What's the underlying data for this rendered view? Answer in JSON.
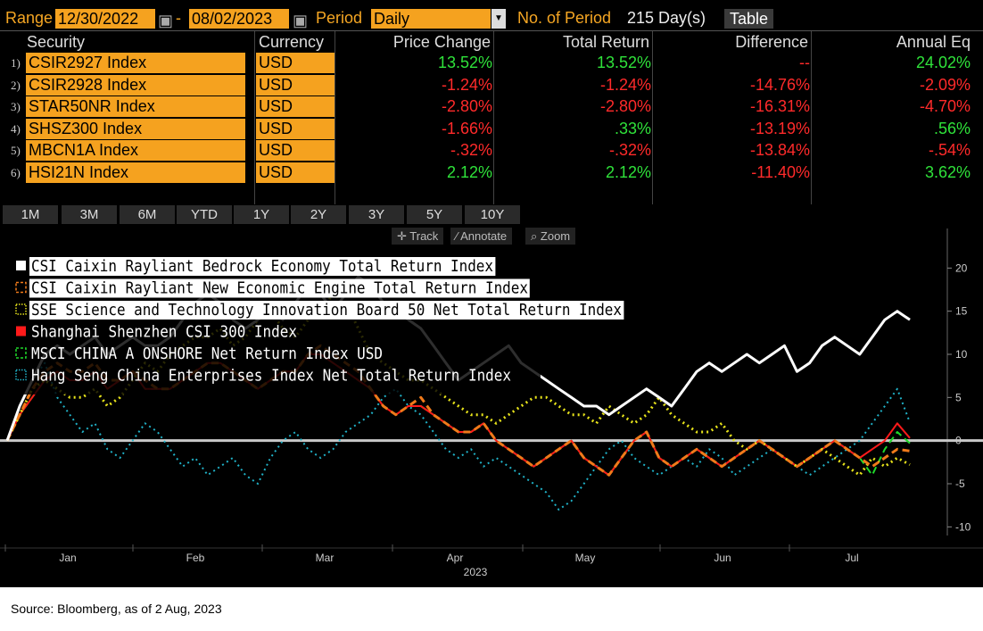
{
  "header": {
    "range_label": "Range",
    "start_date": "12/30/2022",
    "dash": "-",
    "end_date": "08/02/2023",
    "period_label": "Period",
    "period_value": "Daily",
    "num_period_label": "No. of Period",
    "num_period_value": "215 Day(s)",
    "table_button": "Table"
  },
  "table": {
    "headers": [
      "Security",
      "Currency",
      "Price Change",
      "Total Return",
      "Difference",
      "Annual Eq"
    ],
    "rows": [
      {
        "n": "1)",
        "security": "CSIR2927 Index",
        "currency": "USD",
        "price_change": "13.52%",
        "total_return": "13.52%",
        "difference": "--",
        "annual_eq": "24.02%"
      },
      {
        "n": "2)",
        "security": "CSIR2928 Index",
        "currency": "USD",
        "price_change": "-1.24%",
        "total_return": "-1.24%",
        "difference": "-14.76%",
        "annual_eq": "-2.09%"
      },
      {
        "n": "3)",
        "security": "STAR50NR Index",
        "currency": "USD",
        "price_change": "-2.80%",
        "total_return": "-2.80%",
        "difference": "-16.31%",
        "annual_eq": "-4.70%"
      },
      {
        "n": "4)",
        "security": "SHSZ300 Index",
        "currency": "USD",
        "price_change": "-1.66%",
        "total_return": ".33%",
        "difference": "-13.19%",
        "annual_eq": ".56%"
      },
      {
        "n": "5)",
        "security": "MBCN1A Index",
        "currency": "USD",
        "price_change": "-.32%",
        "total_return": "-.32%",
        "difference": "-13.84%",
        "annual_eq": "-.54%"
      },
      {
        "n": "6)",
        "security": "HSI21N Index",
        "currency": "USD",
        "price_change": "2.12%",
        "total_return": "2.12%",
        "difference": "-11.40%",
        "annual_eq": "3.62%"
      }
    ]
  },
  "periods": [
    "1M",
    "3M",
    "6M",
    "YTD",
    "1Y",
    "2Y",
    "3Y",
    "5Y",
    "10Y"
  ],
  "tools": [
    "Track",
    "Annotate",
    "Zoom"
  ],
  "source": "Source: Bloomberg, as of 2 Aug, 2023",
  "colors": {
    "accent": "#f5a21f",
    "positive": "#2fe23a",
    "negative": "#ff2a2a"
  },
  "chart_data": {
    "type": "line",
    "x_label": "2023",
    "x_ticks": [
      "Jan",
      "Feb",
      "Mar",
      "Apr",
      "May",
      "Jun",
      "Jul"
    ],
    "y_ticks": [
      20,
      15,
      10,
      5,
      0,
      -5,
      -10
    ],
    "ylim": [
      -11,
      25
    ],
    "axis_side": "right",
    "legend_position": "top-left",
    "zero_line": true,
    "series": [
      {
        "name": "CSI Caixin Rayliant Bedrock Economy Total Return Index",
        "color": "#ffffff",
        "style": "solid",
        "width": 3,
        "values": [
          0,
          4,
          7,
          10,
          11,
          10,
          11,
          12,
          10,
          11,
          12,
          11,
          11,
          12,
          14,
          16,
          17,
          16,
          14,
          13,
          14,
          15,
          14,
          16,
          18,
          17,
          15,
          17,
          19,
          18,
          16,
          15,
          14,
          13,
          11,
          9,
          7,
          8,
          9,
          10,
          11,
          9,
          8,
          7,
          6,
          5,
          4,
          4,
          3,
          4,
          5,
          6,
          5,
          4,
          6,
          8,
          9,
          8,
          9,
          10,
          9,
          10,
          11,
          8,
          9,
          11,
          12,
          11,
          10,
          12,
          14,
          15,
          14
        ]
      },
      {
        "name": "CSI Caixin Rayliant New Economic Engine Total Return Index",
        "color": "#f07a1a",
        "style": "dash",
        "width": 3,
        "values": [
          0,
          3,
          6,
          8,
          9,
          8,
          8,
          9,
          7,
          7,
          8,
          7,
          6,
          6,
          7,
          8,
          9,
          9,
          8,
          7,
          6,
          7,
          8,
          8,
          10,
          11,
          10,
          9,
          8,
          6,
          4,
          3,
          4,
          5,
          3,
          2,
          1,
          1,
          2,
          0,
          -1,
          -2,
          -3,
          -2,
          -1,
          0,
          -2,
          -3,
          -4,
          -2,
          0,
          1,
          -2,
          -3,
          -2,
          -1,
          -2,
          -3,
          -2,
          -1,
          0,
          -1,
          -2,
          -3,
          -2,
          -1,
          0,
          -1,
          -2,
          -3,
          -2,
          -1,
          -1.2
        ]
      },
      {
        "name": "SSE Science and Technology Innovation Board 50 Net Total Return Index",
        "color": "#e6e21a",
        "style": "dot",
        "width": 3,
        "values": [
          0,
          3,
          6,
          7,
          6,
          5,
          5,
          6,
          4,
          5,
          7,
          9,
          8,
          10,
          11,
          12,
          12,
          13,
          11,
          12,
          14,
          15,
          13,
          12,
          14,
          15,
          17,
          16,
          13,
          10,
          9,
          8,
          7,
          7,
          6,
          5,
          4,
          3,
          3,
          2,
          3,
          4,
          5,
          5,
          4,
          3,
          3,
          2,
          4,
          3,
          2,
          3,
          5,
          3,
          2,
          1,
          1,
          2,
          0,
          -1,
          0,
          -1,
          -2,
          -3,
          -2,
          -1,
          -2,
          -3,
          -4,
          -2,
          -3,
          -2,
          -2.8
        ]
      },
      {
        "name": "Shanghai Shenzhen CSI 300 Index",
        "color": "#ff1a1a",
        "style": "solid",
        "width": 2,
        "values": [
          0,
          3,
          5,
          7,
          8,
          7,
          7,
          8,
          6,
          7,
          8,
          6,
          6,
          6,
          7,
          8,
          9,
          9,
          8,
          7,
          6,
          7,
          8,
          8,
          10,
          10,
          9,
          8,
          7,
          6,
          4,
          3,
          4,
          4,
          3,
          2,
          1,
          1,
          2,
          0,
          -1,
          -2,
          -3,
          -2,
          -1,
          0,
          -2,
          -3,
          -4,
          -2,
          0,
          1,
          -2,
          -3,
          -2,
          -1,
          -2,
          -3,
          -2,
          -1,
          0,
          -1,
          -2,
          -3,
          -2,
          -1,
          0,
          -1,
          -2,
          -1,
          0,
          2,
          0.3
        ]
      },
      {
        "name": "MSCI CHINA A ONSHORE Net Return Index USD",
        "color": "#1fd82a",
        "style": "dash",
        "width": 2,
        "values": [
          0,
          3,
          5,
          7,
          8,
          7,
          7,
          8,
          6,
          7,
          8,
          6,
          6,
          6,
          7,
          8,
          9,
          9,
          8,
          7,
          6,
          7,
          8,
          8,
          10,
          10,
          9,
          8,
          7,
          6,
          4,
          3,
          4,
          4,
          3,
          2,
          1,
          1,
          2,
          0,
          -1,
          -2,
          -3,
          -2,
          -1,
          0,
          -2,
          -3,
          -4,
          -2,
          0,
          1,
          -2,
          -3,
          -2,
          -1,
          -2,
          -3,
          -2,
          -1,
          0,
          -1,
          -2,
          -3,
          -2,
          -1,
          0,
          -1,
          -2,
          -4,
          -1,
          1,
          -0.3
        ]
      },
      {
        "name": "Hang Seng China Enterprises Index Net Total Return Index",
        "color": "#20b2c8",
        "style": "dot",
        "width": 2,
        "values": [
          0,
          4,
          7,
          9,
          5,
          3,
          1,
          2,
          -1,
          -2,
          0,
          2,
          1,
          -1,
          -3,
          -2,
          -4,
          -3,
          -2,
          -4,
          -5,
          -2,
          0,
          1,
          -1,
          -2,
          -1,
          1,
          2,
          3,
          5,
          6,
          4,
          3,
          1,
          -1,
          -2,
          -1,
          -3,
          -2,
          -3,
          -4,
          -5,
          -6,
          -8,
          -7,
          -5,
          -3,
          -1,
          0,
          -2,
          -3,
          -4,
          -3,
          -2,
          -3,
          -1,
          -2,
          -4,
          -3,
          -2,
          -1,
          -2,
          -3,
          -4,
          -3,
          -2,
          -1,
          0,
          2,
          4,
          6,
          2.1
        ]
      }
    ]
  }
}
